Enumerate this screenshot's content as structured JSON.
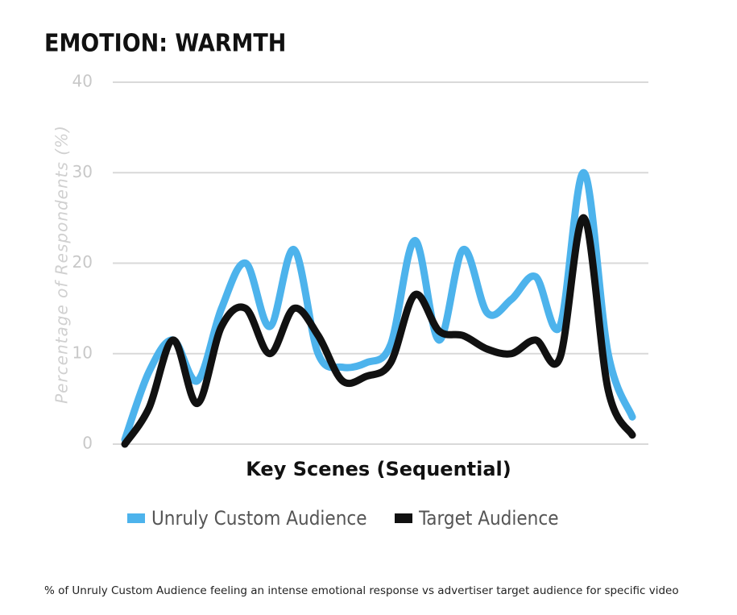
{
  "chart_data": {
    "type": "line",
    "title": "EMOTION: WARMTH",
    "xlabel": "Key Scenes (Sequential)",
    "ylabel": "Percentage of Respondents (%)",
    "footnote": "% of Unruly Custom Audience feeling an intense emotional response vs advertiser target audience for specific video",
    "categories": [
      null,
      null,
      null,
      null,
      null,
      null,
      null,
      null,
      null,
      null,
      null,
      null,
      null,
      null,
      null,
      null,
      null,
      null,
      null,
      null,
      null,
      null
    ],
    "series": [
      {
        "name": "Unruly Custom Audience",
        "color": "#4db3ec",
        "values": [
          0.5,
          8,
          11.5,
          7,
          15,
          20,
          13,
          21.5,
          10,
          8.5,
          9,
          11,
          22.5,
          11.5,
          21.5,
          14.5,
          16,
          18.5,
          13,
          30,
          10,
          3
        ]
      },
      {
        "name": "Target Audience",
        "color": "#111111",
        "values": [
          0,
          4,
          11.5,
          4.5,
          13,
          15,
          10,
          15,
          12,
          7,
          7.5,
          9,
          16.5,
          12.5,
          12,
          10.5,
          10,
          11.5,
          9.5,
          25,
          6,
          1
        ]
      }
    ],
    "ylim": [
      0,
      40
    ],
    "yticks": [
      0,
      10,
      20,
      30,
      40
    ],
    "grid": true
  }
}
